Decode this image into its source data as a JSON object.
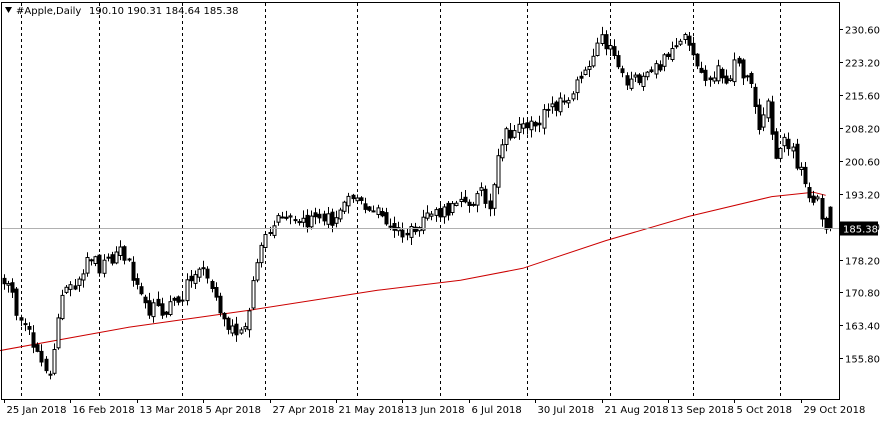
{
  "header": {
    "symbol": "#Apple,Daily",
    "ohlc": "190.10 190.31 184.64 185.38",
    "menu_icon": "triangle-down-icon"
  },
  "chart_data": {
    "type": "candlestick",
    "title": "#Apple,Daily",
    "ylim": [
      146.5,
      236.5
    ],
    "y_ticks": [
      155.8,
      163.4,
      170.8,
      178.2,
      185.8,
      193.2,
      200.6,
      208.2,
      215.6,
      223.2,
      230.6
    ],
    "y_tick_labels": [
      "155.80",
      "163.40",
      "170.80",
      "178.20",
      "185.80",
      "193.20",
      "200.60",
      "208.20",
      "215.60",
      "223.20",
      "230.60"
    ],
    "x_labels": [
      {
        "label": "25 Jan 2018",
        "index": 0
      },
      {
        "label": "16 Feb 2018",
        "index": 16
      },
      {
        "label": "13 Mar 2018",
        "index": 32
      },
      {
        "label": "5 Apr 2018",
        "index": 48
      },
      {
        "label": "27 Apr 2018",
        "index": 64
      },
      {
        "label": "21 May 2018",
        "index": 80
      },
      {
        "label": "13 Jun 2018",
        "index": 96
      },
      {
        "label": "6 Jul 2018",
        "index": 112
      },
      {
        "label": "30 Jul 2018",
        "index": 128
      },
      {
        "label": "21 Aug 2018",
        "index": 144
      },
      {
        "label": "13 Sep 2018",
        "index": 160
      },
      {
        "label": "5 Oct 2018",
        "index": 176
      },
      {
        "label": "29 Oct 2018",
        "index": 192
      }
    ],
    "period_separators": [
      4,
      23,
      43,
      63,
      85,
      105,
      126,
      146,
      166,
      187
    ],
    "current_price": 185.38,
    "current_price_label": "185.38",
    "moving_average": {
      "color": "#cc0000",
      "points": [
        [
          -1,
          157.5
        ],
        [
          30,
          162.8
        ],
        [
          60,
          166.8
        ],
        [
          90,
          171.2
        ],
        [
          110,
          173.5
        ],
        [
          125,
          176.2
        ],
        [
          145,
          182.5
        ],
        [
          165,
          188.0
        ],
        [
          185,
          192.5
        ],
        [
          195,
          193.5
        ],
        [
          198,
          192.8
        ]
      ]
    },
    "anchors": [
      [
        0,
        174
      ],
      [
        3,
        167
      ],
      [
        5,
        165
      ],
      [
        7,
        158
      ],
      [
        9,
        154
      ],
      [
        11,
        153
      ],
      [
        13,
        164
      ],
      [
        15,
        173
      ],
      [
        17,
        173
      ],
      [
        19,
        176
      ],
      [
        21,
        179
      ],
      [
        23,
        176
      ],
      [
        26,
        178
      ],
      [
        28,
        181
      ],
      [
        30,
        177
      ],
      [
        32,
        171
      ],
      [
        34,
        167
      ],
      [
        36,
        167
      ],
      [
        38,
        166
      ],
      [
        40,
        168
      ],
      [
        43,
        170
      ],
      [
        45,
        174
      ],
      [
        48,
        176
      ],
      [
        50,
        172
      ],
      [
        53,
        164
      ],
      [
        55,
        163
      ],
      [
        57,
        162
      ],
      [
        59,
        166
      ],
      [
        61,
        178
      ],
      [
        63,
        184
      ],
      [
        65,
        187
      ],
      [
        67,
        189
      ],
      [
        70,
        188
      ],
      [
        73,
        187
      ],
      [
        76,
        188
      ],
      [
        79,
        187
      ],
      [
        82,
        190
      ],
      [
        84,
        192
      ],
      [
        86,
        191
      ],
      [
        88,
        190
      ],
      [
        90,
        189
      ],
      [
        93,
        186
      ],
      [
        95,
        185
      ],
      [
        97,
        184
      ],
      [
        99,
        186
      ],
      [
        101,
        188
      ],
      [
        104,
        189
      ],
      [
        108,
        190
      ],
      [
        112,
        191
      ],
      [
        115,
        193
      ],
      [
        117,
        190
      ],
      [
        119,
        203
      ],
      [
        121,
        207
      ],
      [
        124,
        208
      ],
      [
        127,
        209
      ],
      [
        130,
        211
      ],
      [
        133,
        213
      ],
      [
        136,
        215
      ],
      [
        138,
        218
      ],
      [
        140,
        220
      ],
      [
        142,
        224
      ],
      [
        144,
        228
      ],
      [
        146,
        226
      ],
      [
        148,
        222
      ],
      [
        150,
        218
      ],
      [
        152,
        219
      ],
      [
        154,
        221
      ],
      [
        157,
        222
      ],
      [
        160,
        224
      ],
      [
        162,
        228
      ],
      [
        164,
        230
      ],
      [
        166,
        226
      ],
      [
        168,
        220
      ],
      [
        170,
        219
      ],
      [
        172,
        221
      ],
      [
        174,
        219
      ],
      [
        176,
        222
      ],
      [
        178,
        221
      ],
      [
        180,
        217
      ],
      [
        182,
        208
      ],
      [
        184,
        214
      ],
      [
        186,
        201
      ],
      [
        188,
        205
      ],
      [
        190,
        203
      ],
      [
        192,
        198
      ],
      [
        194,
        191
      ],
      [
        196,
        192
      ],
      [
        198,
        185
      ]
    ]
  }
}
